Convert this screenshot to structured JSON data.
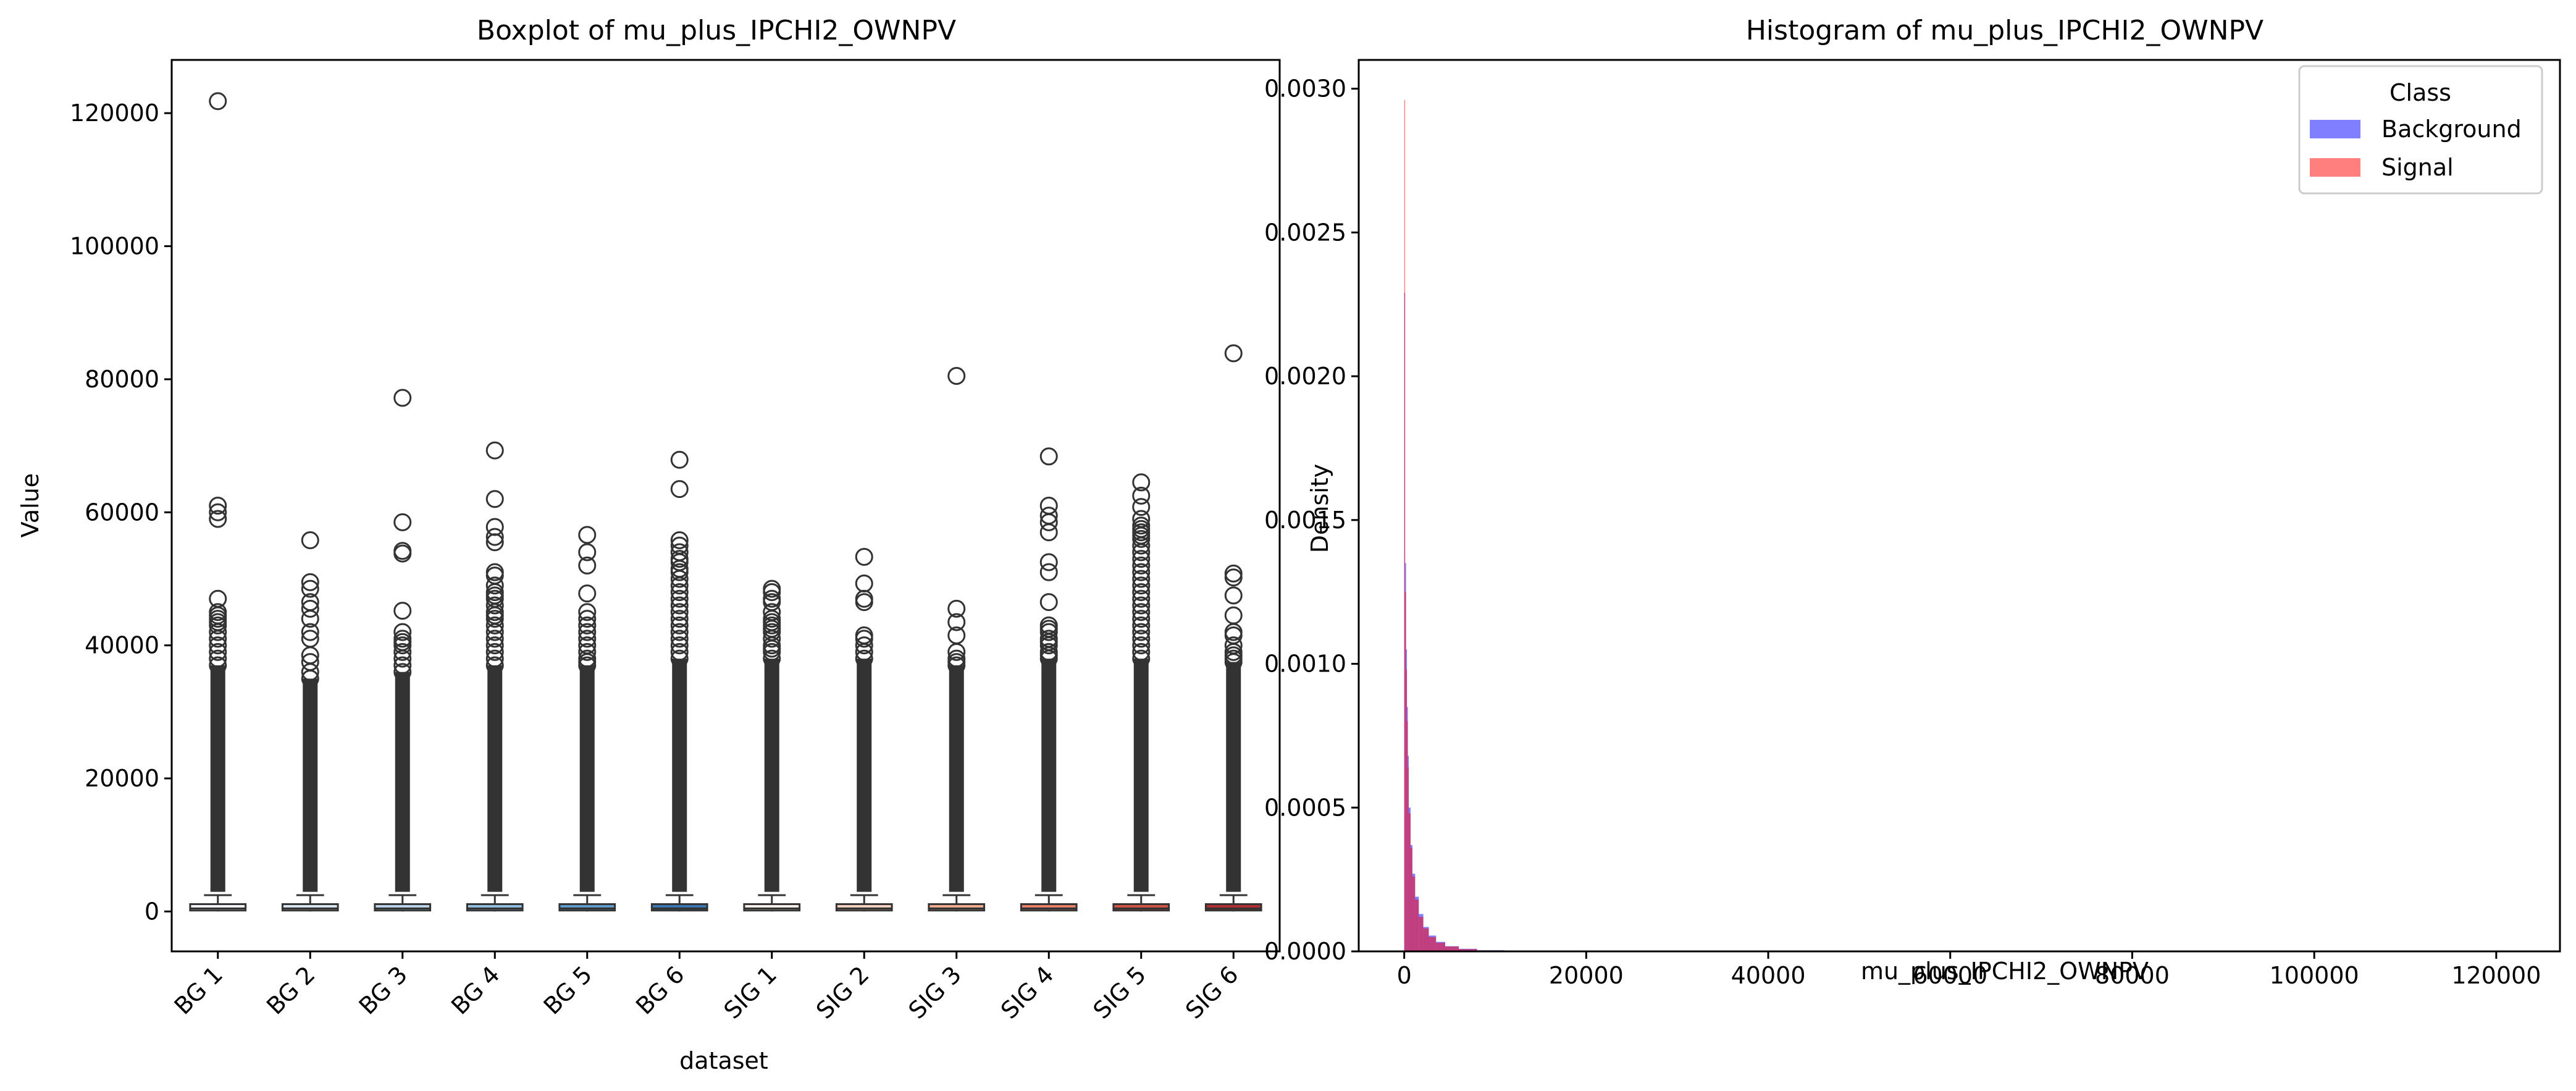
{
  "chart_data": [
    {
      "type": "boxplot",
      "title": "Boxplot of mu_plus_IPCHI2_OWNPV",
      "xlabel": "dataset",
      "ylabel": "Value",
      "ylim": [
        -6000,
        128000
      ],
      "yticks": [
        0,
        20000,
        40000,
        60000,
        80000,
        100000,
        120000
      ],
      "grid": false,
      "categories": [
        "BG 1",
        "BG 2",
        "BG 3",
        "BG 4",
        "BG 5",
        "BG 6",
        "SIG 1",
        "SIG 2",
        "SIG 3",
        "SIG 4",
        "SIG 5",
        "SIG 6"
      ],
      "box_colors": [
        "#f4f8fc",
        "#d9e6f2",
        "#bdd5ea",
        "#93bfe0",
        "#5f9ccd",
        "#3a78b4",
        "#fdf1ec",
        "#f9d3c1",
        "#f3ad91",
        "#e8806a",
        "#d45546",
        "#b52d35"
      ],
      "boxes": [
        {
          "q1": 150,
          "median": 450,
          "q3": 1100,
          "whisker_low": 0,
          "whisker_high": 2450,
          "outliers": [
            121800,
            61000,
            60000,
            59000,
            47000,
            45000,
            44500,
            44000,
            43500,
            43000,
            42000,
            41000,
            40000,
            39000,
            38000,
            37000
          ]
        },
        {
          "q1": 150,
          "median": 450,
          "q3": 1100,
          "whisker_low": 0,
          "whisker_high": 2450,
          "outliers": [
            55800,
            49500,
            48500,
            46500,
            45500,
            44000,
            42000,
            41000,
            38500,
            37500,
            36000,
            35000
          ]
        },
        {
          "q1": 150,
          "median": 450,
          "q3": 1100,
          "whisker_low": 0,
          "whisker_high": 2450,
          "outliers": [
            77200,
            58500,
            54200,
            53800,
            45200,
            42000,
            41000,
            40500,
            40000,
            39000,
            38000,
            37000,
            36000
          ]
        },
        {
          "q1": 150,
          "median": 450,
          "q3": 1100,
          "whisker_low": 0,
          "whisker_high": 2450,
          "outliers": [
            69300,
            62000,
            57800,
            56300,
            55500,
            51000,
            50500,
            49000,
            48000,
            47500,
            47000,
            46000,
            45000,
            44500,
            44000,
            43000,
            42000,
            41000,
            40000,
            39000,
            38000,
            37000
          ]
        },
        {
          "q1": 150,
          "median": 450,
          "q3": 1100,
          "whisker_low": 0,
          "whisker_high": 2450,
          "outliers": [
            56600,
            54000,
            52000,
            47800,
            45000,
            44000,
            43000,
            42000,
            41000,
            40000,
            39000,
            38000,
            37500,
            37000
          ]
        },
        {
          "q1": 150,
          "median": 450,
          "q3": 1100,
          "whisker_low": 0,
          "whisker_high": 2450,
          "outliers": [
            67900,
            63500,
            55800,
            55000,
            54000,
            53000,
            52500,
            51500,
            51000,
            50000,
            49000,
            48000,
            47000,
            46000,
            45000,
            44000,
            43000,
            42000,
            41000,
            40000,
            39000,
            38000
          ]
        },
        {
          "q1": 150,
          "median": 450,
          "q3": 1100,
          "whisker_low": 0,
          "whisker_high": 2450,
          "outliers": [
            48500,
            48000,
            47000,
            46500,
            45000,
            44000,
            43500,
            43000,
            42500,
            42000,
            41000,
            40000,
            39500,
            39000,
            38000
          ]
        },
        {
          "q1": 150,
          "median": 450,
          "q3": 1100,
          "whisker_low": 0,
          "whisker_high": 2450,
          "outliers": [
            53300,
            49300,
            47000,
            46500,
            41500,
            41000,
            40000,
            39000,
            38000
          ]
        },
        {
          "q1": 150,
          "median": 450,
          "q3": 1100,
          "whisker_low": 0,
          "whisker_high": 2450,
          "outliers": [
            80500,
            45500,
            43500,
            41500,
            39000,
            38000,
            37500,
            37000
          ]
        },
        {
          "q1": 150,
          "median": 450,
          "q3": 1100,
          "whisker_low": 0,
          "whisker_high": 2450,
          "outliers": [
            68400,
            61000,
            59500,
            58500,
            57000,
            52500,
            51000,
            46500,
            43000,
            42500,
            42000,
            41000,
            40500,
            40000,
            39000,
            38500,
            38000
          ]
        },
        {
          "q1": 150,
          "median": 450,
          "q3": 1100,
          "whisker_low": 0,
          "whisker_high": 2450,
          "outliers": [
            64500,
            62500,
            60800,
            59000,
            58000,
            57500,
            57000,
            56500,
            56000,
            55000,
            54000,
            53000,
            52000,
            51000,
            50000,
            49000,
            48000,
            47000,
            46000,
            45000,
            44000,
            43000,
            42000,
            41000,
            40000,
            39000,
            38000
          ]
        },
        {
          "q1": 150,
          "median": 450,
          "q3": 1100,
          "whisker_low": 0,
          "whisker_high": 2450,
          "outliers": [
            83900,
            50800,
            50200,
            47500,
            44500,
            42000,
            41500,
            40000,
            39000,
            38500,
            38000,
            37500
          ]
        }
      ]
    },
    {
      "type": "histogram",
      "title": "Histogram of mu_plus_IPCHI2_OWNPV",
      "xlabel": "mu_plus_IPCHI2_OWNPV",
      "ylabel": "Density",
      "xlim": [
        -5000,
        127000
      ],
      "ylim": [
        0,
        0.0031
      ],
      "xticks": [
        0,
        20000,
        40000,
        60000,
        80000,
        100000,
        120000
      ],
      "yticks": [
        0.0,
        0.0005,
        0.001,
        0.0015,
        0.002,
        0.0025,
        0.003
      ],
      "ytick_labels": [
        "0.0000",
        "0.0005",
        "0.0010",
        "0.0015",
        "0.0020",
        "0.0025",
        "0.0030"
      ],
      "grid": false,
      "legend": {
        "title": "Class",
        "position": "top-right"
      },
      "series": [
        {
          "name": "Background",
          "color": "#0000ff",
          "alpha": 0.5,
          "bins": [
            [
              0,
              100,
              0.00229
            ],
            [
              100,
              200,
              0.00135
            ],
            [
              200,
              300,
              0.00105
            ],
            [
              300,
              400,
              0.00085
            ],
            [
              400,
              500,
              0.00068
            ],
            [
              500,
              700,
              0.0005
            ],
            [
              700,
              900,
              0.00037
            ],
            [
              900,
              1200,
              0.00027
            ],
            [
              1200,
              1600,
              0.00019
            ],
            [
              1600,
              2100,
              0.00013
            ],
            [
              2100,
              2700,
              8.5e-05
            ],
            [
              2700,
              3500,
              5.5e-05
            ],
            [
              3500,
              4500,
              3.3e-05
            ],
            [
              4500,
              6000,
              1.8e-05
            ],
            [
              6000,
              8000,
              9e-06
            ],
            [
              8000,
              11000,
              4e-06
            ],
            [
              11000,
              15000,
              1.5e-06
            ],
            [
              15000,
              20000,
              6e-07
            ]
          ]
        },
        {
          "name": "Signal",
          "color": "#ff0000",
          "alpha": 0.5,
          "bins": [
            [
              0,
              100,
              0.00296
            ],
            [
              100,
              200,
              0.00125
            ],
            [
              200,
              300,
              0.00098
            ],
            [
              300,
              400,
              0.0008
            ],
            [
              400,
              500,
              0.00064
            ],
            [
              500,
              700,
              0.00048
            ],
            [
              700,
              900,
              0.00036
            ],
            [
              900,
              1200,
              0.00026
            ],
            [
              1200,
              1600,
              0.00018
            ],
            [
              1600,
              2100,
              0.00012
            ],
            [
              2100,
              2700,
              8e-05
            ],
            [
              2700,
              3500,
              5e-05
            ],
            [
              3500,
              4500,
              3e-05
            ],
            [
              4500,
              6000,
              1.7e-05
            ],
            [
              6000,
              8000,
              8e-06
            ],
            [
              8000,
              11000,
              3.5e-06
            ],
            [
              11000,
              15000,
              1.2e-06
            ],
            [
              15000,
              20000,
              5e-07
            ]
          ]
        }
      ]
    }
  ]
}
